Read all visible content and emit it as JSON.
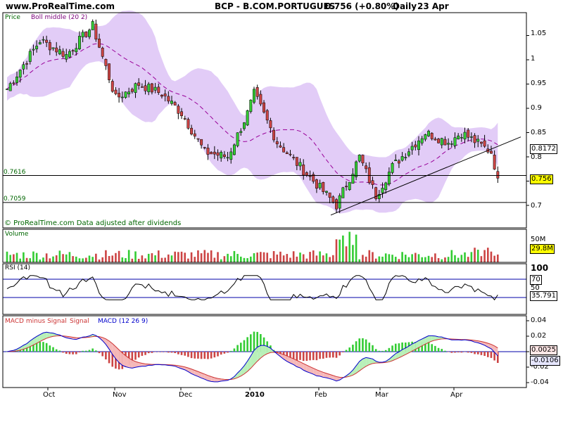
{
  "header": {
    "site": "www.ProRealTime.com",
    "symbol": "BCP - B.COM.PORTUGUES",
    "quote": "0.756 (+0.80%)",
    "period": "Daily",
    "date": "23 Apr"
  },
  "price_panel": {
    "legend_price": "Price",
    "legend_boll": "Boll middle (20 2)",
    "footer": "© ProRealTime.com  Data adjusted after dividends",
    "yticks": [
      "1.05",
      "1",
      "0.95",
      "0.9",
      "0.85",
      "0.8",
      "0.75",
      "0.7"
    ],
    "hline_1": "0.7616",
    "hline_2": "0.7059",
    "tag_boll_upper": "0.8172",
    "tag_last": "0.756"
  },
  "volume_panel": {
    "legend": "Volume",
    "tick": "50M",
    "tag": "29.8M"
  },
  "rsi_panel": {
    "legend": "RSI (14)",
    "tick_top": "100",
    "tick_70": "70",
    "tick_50": "50",
    "tag": "35.791"
  },
  "macd_panel": {
    "legend_hist": "MACD minus Signal",
    "legend_signal": "Signal",
    "legend_macd": "MACD (12 26 9)",
    "yticks": [
      "0.04",
      "0.02",
      "0",
      "-0.02",
      "-0.04"
    ],
    "tag_hist": "0.0025",
    "tag_macd": "-0.0106"
  },
  "x_axis": {
    "labels": [
      "Oct",
      "Nov",
      "Dec",
      "2010",
      "Feb",
      "Mar",
      "Apr"
    ]
  },
  "colors": {
    "up": "#33cc33",
    "down": "#cc4444",
    "band": "#e2ccf7",
    "macd": "#0000cc",
    "signal": "#cc3333",
    "grid_h": "#0000aa"
  },
  "chart_data": {
    "type": "candlestick",
    "title": "BCP - B.COM.PORTUGUES 0.756 (+0.80%) Daily 23 Apr",
    "ylim": [
      0.675,
      1.09
    ],
    "x_labels": [
      "Oct",
      "Nov",
      "Dec",
      "2010",
      "Feb",
      "Mar",
      "Apr"
    ],
    "keypoints": [
      [
        "late Sep",
        0.94
      ],
      [
        "early Oct",
        1.04
      ],
      [
        "mid Oct",
        1.01
      ],
      [
        "late Oct",
        1.07
      ],
      [
        "early Nov",
        0.92
      ],
      [
        "mid Nov",
        0.95
      ],
      [
        "late Nov",
        0.93
      ],
      [
        "early Dec",
        0.89
      ],
      [
        "mid Dec",
        0.81
      ],
      [
        "late Dec",
        0.8
      ],
      [
        "end Dec",
        0.89
      ],
      [
        "early Jan",
        0.93
      ],
      [
        "mid Jan",
        0.83
      ],
      [
        "early Feb",
        0.7
      ],
      [
        "mid Feb",
        0.8
      ],
      [
        "late Feb",
        0.72
      ],
      [
        "early Mar",
        0.78
      ],
      [
        "mid Mar",
        0.85
      ],
      [
        "late Mar",
        0.83
      ],
      [
        "early Apr",
        0.85
      ],
      [
        "mid Apr",
        0.81
      ],
      [
        "23 Apr",
        0.756
      ]
    ],
    "last": 0.756,
    "bollinger_middle": "Boll middle (20 2)",
    "bollinger_upper_last": 0.8172,
    "horizontal_lines": [
      0.7616,
      0.7059
    ],
    "trendline": [
      [
        "early Feb",
        0.68
      ],
      [
        "23 Apr",
        0.815
      ]
    ],
    "volume_last": "29.8M",
    "rsi_last": 35.791,
    "rsi_levels": [
      70,
      30
    ],
    "macd_last": -0.0106,
    "macd_hist_last": 0.0025
  }
}
